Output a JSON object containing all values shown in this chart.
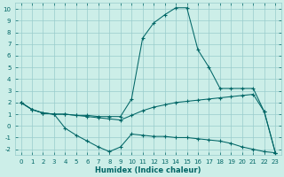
{
  "xlabel": "Humidex (Indice chaleur)",
  "bg_color": "#cceee8",
  "grid_color": "#99cccc",
  "line_color": "#006666",
  "marker": "+",
  "xlim": [
    -0.5,
    23.5
  ],
  "ylim": [
    -2.5,
    10.5
  ],
  "xticks": [
    0,
    1,
    2,
    3,
    4,
    5,
    6,
    7,
    8,
    9,
    10,
    11,
    12,
    13,
    14,
    15,
    16,
    17,
    18,
    19,
    20,
    21,
    22,
    23
  ],
  "yticks": [
    -2,
    -1,
    0,
    1,
    2,
    3,
    4,
    5,
    6,
    7,
    8,
    9,
    10
  ],
  "line1_x": [
    0,
    1,
    2,
    3,
    4,
    5,
    6,
    7,
    8,
    9,
    10,
    11,
    12,
    13,
    14,
    15,
    16,
    17,
    18,
    19,
    20,
    21,
    22,
    23
  ],
  "line1_y": [
    2.0,
    1.4,
    1.1,
    1.0,
    1.0,
    0.9,
    0.9,
    0.8,
    0.8,
    0.8,
    2.3,
    7.5,
    8.8,
    9.5,
    10.1,
    10.1,
    6.5,
    5.0,
    3.2,
    3.2,
    3.2,
    3.2,
    1.2,
    -2.3
  ],
  "line2_x": [
    0,
    1,
    2,
    3,
    4,
    5,
    6,
    7,
    8,
    9,
    10,
    11,
    12,
    13,
    14,
    15,
    16,
    17,
    18,
    19,
    20,
    21,
    22,
    23
  ],
  "line2_y": [
    2.0,
    1.4,
    1.1,
    1.0,
    1.0,
    0.9,
    0.8,
    0.7,
    0.6,
    0.5,
    0.9,
    1.3,
    1.6,
    1.8,
    2.0,
    2.1,
    2.2,
    2.3,
    2.4,
    2.5,
    2.6,
    2.7,
    1.2,
    -2.3
  ],
  "line3_x": [
    0,
    1,
    2,
    3,
    4,
    5,
    6,
    7,
    8,
    9,
    10,
    11,
    12,
    13,
    14,
    15,
    16,
    17,
    18,
    19,
    20,
    21,
    22,
    23
  ],
  "line3_y": [
    2.0,
    1.4,
    1.1,
    1.0,
    -0.2,
    -0.8,
    -1.3,
    -1.8,
    -2.2,
    -1.8,
    -0.7,
    -0.8,
    -0.9,
    -0.9,
    -1.0,
    -1.0,
    -1.1,
    -1.2,
    -1.3,
    -1.5,
    -1.8,
    -2.0,
    -2.2,
    -2.3
  ]
}
